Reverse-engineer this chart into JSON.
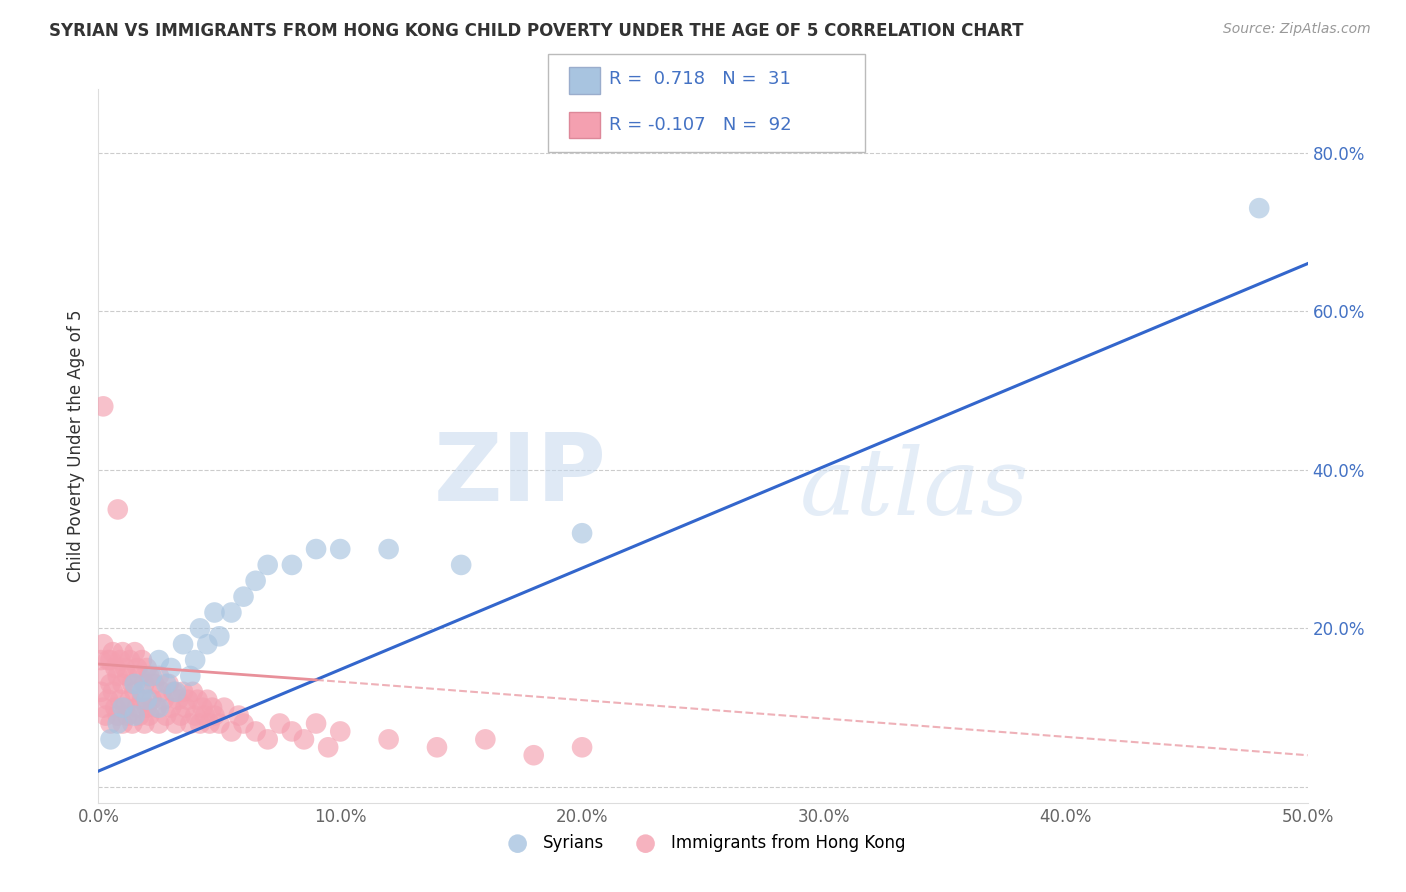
{
  "title": "SYRIAN VS IMMIGRANTS FROM HONG KONG CHILD POVERTY UNDER THE AGE OF 5 CORRELATION CHART",
  "source": "Source: ZipAtlas.com",
  "ylabel": "Child Poverty Under the Age of 5",
  "xlim": [
    0.0,
    0.5
  ],
  "ylim": [
    -0.02,
    0.88
  ],
  "xticks": [
    0.0,
    0.1,
    0.2,
    0.3,
    0.4,
    0.5
  ],
  "xtick_labels": [
    "0.0%",
    "10.0%",
    "20.0%",
    "30.0%",
    "40.0%",
    "50.0%"
  ],
  "yticks": [
    0.0,
    0.2,
    0.4,
    0.6,
    0.8
  ],
  "ytick_labels": [
    "",
    "20.0%",
    "40.0%",
    "60.0%",
    "80.0%"
  ],
  "syrian_color": "#a8c4e0",
  "hk_color": "#f4a0b0",
  "syrian_line_color": "#3366CC",
  "hk_line_color": "#E8909A",
  "syrian_R": 0.718,
  "syrian_N": 31,
  "hk_R": -0.107,
  "hk_N": 92,
  "watermark_zip": "ZIP",
  "watermark_atlas": "atlas",
  "background_color": "#ffffff",
  "syrian_scatter_x": [
    0.005,
    0.008,
    0.01,
    0.015,
    0.015,
    0.018,
    0.02,
    0.022,
    0.025,
    0.025,
    0.028,
    0.03,
    0.032,
    0.035,
    0.038,
    0.04,
    0.042,
    0.045,
    0.048,
    0.05,
    0.055,
    0.06,
    0.065,
    0.07,
    0.08,
    0.09,
    0.1,
    0.12,
    0.15,
    0.2,
    0.48
  ],
  "syrian_scatter_y": [
    0.06,
    0.08,
    0.1,
    0.09,
    0.13,
    0.12,
    0.11,
    0.14,
    0.1,
    0.16,
    0.13,
    0.15,
    0.12,
    0.18,
    0.14,
    0.16,
    0.2,
    0.18,
    0.22,
    0.19,
    0.22,
    0.24,
    0.26,
    0.28,
    0.28,
    0.3,
    0.3,
    0.3,
    0.28,
    0.32,
    0.73
  ],
  "hk_scatter_x": [
    0.001,
    0.001,
    0.002,
    0.002,
    0.003,
    0.003,
    0.004,
    0.004,
    0.005,
    0.005,
    0.005,
    0.006,
    0.006,
    0.007,
    0.007,
    0.008,
    0.008,
    0.009,
    0.009,
    0.01,
    0.01,
    0.01,
    0.011,
    0.011,
    0.012,
    0.012,
    0.013,
    0.013,
    0.014,
    0.014,
    0.015,
    0.015,
    0.016,
    0.016,
    0.017,
    0.017,
    0.018,
    0.018,
    0.019,
    0.019,
    0.02,
    0.02,
    0.021,
    0.021,
    0.022,
    0.023,
    0.024,
    0.025,
    0.025,
    0.026,
    0.027,
    0.028,
    0.029,
    0.03,
    0.031,
    0.032,
    0.033,
    0.034,
    0.035,
    0.036,
    0.037,
    0.038,
    0.039,
    0.04,
    0.041,
    0.042,
    0.043,
    0.044,
    0.045,
    0.046,
    0.047,
    0.048,
    0.05,
    0.052,
    0.055,
    0.058,
    0.06,
    0.065,
    0.07,
    0.075,
    0.08,
    0.085,
    0.09,
    0.095,
    0.1,
    0.12,
    0.14,
    0.16,
    0.18,
    0.2,
    0.002,
    0.008
  ],
  "hk_scatter_y": [
    0.12,
    0.16,
    0.1,
    0.18,
    0.09,
    0.14,
    0.11,
    0.16,
    0.08,
    0.13,
    0.16,
    0.12,
    0.17,
    0.1,
    0.15,
    0.09,
    0.14,
    0.11,
    0.16,
    0.08,
    0.13,
    0.17,
    0.1,
    0.15,
    0.09,
    0.14,
    0.11,
    0.16,
    0.08,
    0.13,
    0.12,
    0.17,
    0.1,
    0.15,
    0.09,
    0.14,
    0.11,
    0.16,
    0.08,
    0.13,
    0.1,
    0.15,
    0.09,
    0.14,
    0.11,
    0.13,
    0.1,
    0.08,
    0.14,
    0.12,
    0.11,
    0.09,
    0.13,
    0.1,
    0.12,
    0.08,
    0.11,
    0.09,
    0.12,
    0.1,
    0.11,
    0.08,
    0.12,
    0.09,
    0.11,
    0.08,
    0.1,
    0.09,
    0.11,
    0.08,
    0.1,
    0.09,
    0.08,
    0.1,
    0.07,
    0.09,
    0.08,
    0.07,
    0.06,
    0.08,
    0.07,
    0.06,
    0.08,
    0.05,
    0.07,
    0.06,
    0.05,
    0.06,
    0.04,
    0.05,
    0.48,
    0.35
  ]
}
